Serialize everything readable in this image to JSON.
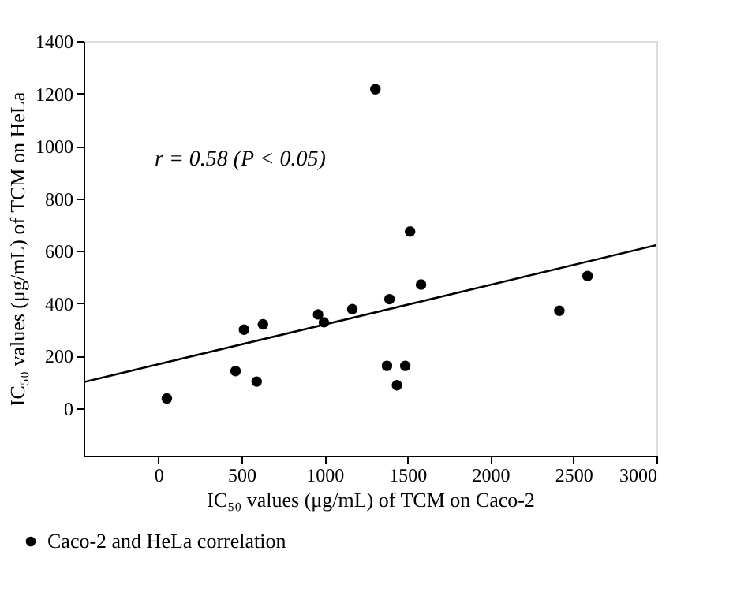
{
  "chart_data": {
    "type": "scatter",
    "xlabel": "IC₅₀ values (μg/mL) of TCM on Caco-2",
    "ylabel": "IC₅₀ values (μg/mL) of TCM on HeLa",
    "annotations": [
      "r = 0.58 (P < 0.05)"
    ],
    "series": [
      {
        "name": "Caco-2 and HeLa correlation",
        "color": "#000000",
        "marker": "circle",
        "x": [
          51,
          465,
          516,
          592,
          630,
          962,
          997,
          1168,
          1307,
          1377,
          1392,
          1437,
          1487,
          1516,
          1582,
          2415,
          2585
        ],
        "values": [
          38,
          142,
          300,
          102,
          320,
          358,
          328,
          378,
          1216,
          162,
          416,
          88,
          162,
          674,
          472,
          372,
          504
        ]
      },
      {
        "type": "line",
        "color": "#000000",
        "line_style": "solid",
        "x": [
          -450,
          3000
        ],
        "values": [
          100,
          622
        ]
      }
    ],
    "xlim": [
      -450,
      3000
    ],
    "ylim": [
      -180,
      1400
    ],
    "xticks": [
      0,
      500,
      1000,
      1500,
      2000,
      2500,
      3000
    ],
    "yticks": [
      0,
      200,
      400,
      600,
      800,
      1000,
      1200,
      1400
    ],
    "grid": false,
    "legend": "bottom left"
  }
}
